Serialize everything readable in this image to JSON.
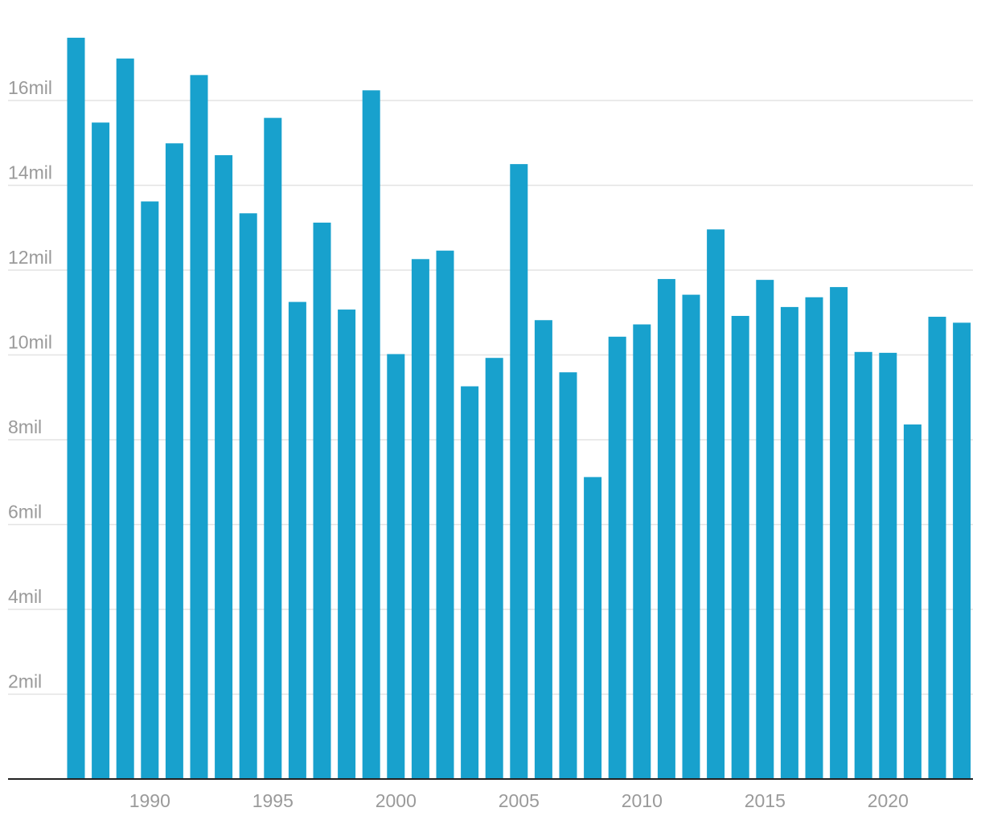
{
  "colors": {
    "bar": "#18a1cd",
    "gridline": "#e3e3e3",
    "baseline": "#222222",
    "tick_text": "#9a9a9a"
  },
  "chart_data": {
    "type": "bar",
    "title": "",
    "xlabel": "",
    "ylabel": "",
    "categories": [
      1987,
      1988,
      1989,
      1990,
      1991,
      1992,
      1993,
      1994,
      1995,
      1996,
      1997,
      1998,
      1999,
      2000,
      2001,
      2002,
      2003,
      2004,
      2005,
      2006,
      2007,
      2008,
      2009,
      2010,
      2011,
      2012,
      2013,
      2014,
      2015,
      2016,
      2017,
      2018,
      2019,
      2020,
      2021,
      2022,
      2023
    ],
    "values": [
      17.48,
      15.48,
      16.99,
      13.62,
      14.99,
      16.6,
      14.71,
      13.34,
      15.59,
      11.25,
      13.12,
      11.07,
      16.24,
      10.02,
      12.26,
      12.46,
      9.26,
      9.93,
      14.5,
      10.82,
      9.59,
      7.12,
      10.43,
      10.72,
      11.79,
      11.42,
      12.96,
      10.92,
      11.77,
      11.13,
      11.36,
      11.6,
      10.07,
      10.05,
      8.36,
      10.9,
      10.76
    ],
    "ylim": [
      0,
      17.8
    ],
    "y_ticks": [
      {
        "value": 2,
        "label": "2mil"
      },
      {
        "value": 4,
        "label": "4mil"
      },
      {
        "value": 6,
        "label": "6mil"
      },
      {
        "value": 8,
        "label": "8mil"
      },
      {
        "value": 10,
        "label": "10mil"
      },
      {
        "value": 12,
        "label": "12mil"
      },
      {
        "value": 14,
        "label": "14mil"
      },
      {
        "value": 16,
        "label": "16mil"
      }
    ],
    "x_ticks": [
      {
        "value": 1990,
        "label": "1990"
      },
      {
        "value": 1995,
        "label": "1995"
      },
      {
        "value": 2000,
        "label": "2000"
      },
      {
        "value": 2005,
        "label": "2005"
      },
      {
        "value": 2010,
        "label": "2010"
      },
      {
        "value": 2015,
        "label": "2015"
      },
      {
        "value": 2020,
        "label": "2020"
      }
    ],
    "grid": true,
    "legend": "none"
  }
}
